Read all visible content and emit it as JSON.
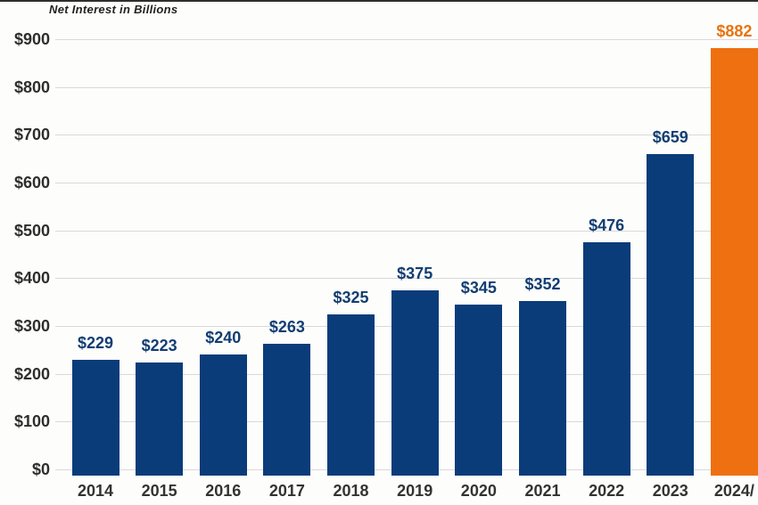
{
  "page": {
    "title": "Net Interest in Billions"
  },
  "chart_data": {
    "type": "bar",
    "title": "Net Interest in Billions",
    "categories": [
      "2014",
      "2015",
      "2016",
      "2017",
      "2018",
      "2019",
      "2020",
      "2021",
      "2022",
      "2023",
      "2024/"
    ],
    "values": [
      229,
      223,
      240,
      263,
      325,
      375,
      345,
      352,
      476,
      659,
      882
    ],
    "value_labels": [
      "$229",
      "$223",
      "$240",
      "$263",
      "$325",
      "$375",
      "$345",
      "$352",
      "$476",
      "$659",
      "$882"
    ],
    "xlabel": "",
    "ylabel": "",
    "ylim": [
      0,
      900
    ],
    "ytick_values": [
      900,
      800,
      700,
      600,
      500,
      400,
      300,
      200,
      100,
      0
    ],
    "ytick_labels": [
      "$900",
      "$800",
      "$700",
      "$600",
      "$500",
      "$400",
      "$300",
      "$200",
      "$100",
      "$0"
    ],
    "grid": true,
    "legend_position": "none",
    "highlight_index": 10,
    "colors": {
      "bar": "#0a3c7a",
      "highlight_bar": "#ee7010",
      "value_label": "#123e72",
      "highlight_value_label": "#e8730f",
      "axis_text": "#2e2e2e",
      "gridline": "#d9d9d9",
      "title_text": "#222222",
      "background": "#fdfdfc",
      "top_border": "#2e2e2e"
    }
  }
}
